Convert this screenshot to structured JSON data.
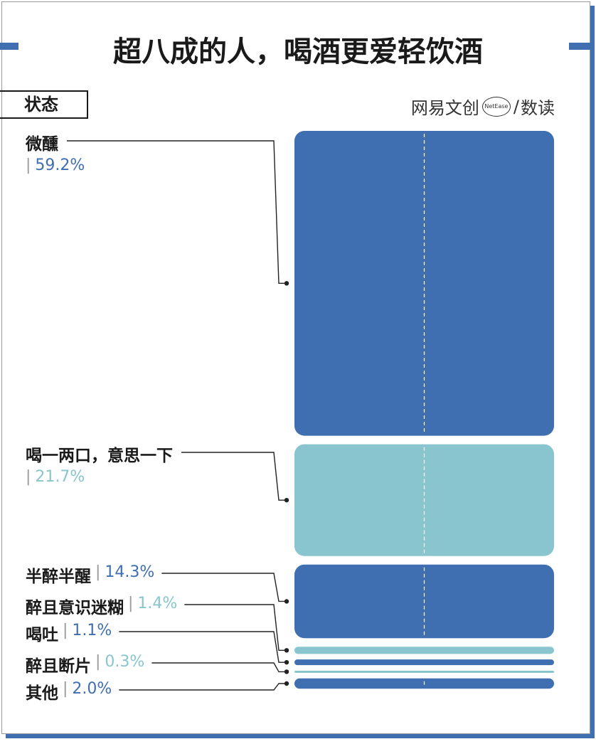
{
  "title": "超八成的人，喝酒更爱轻饮酒",
  "state_label": "状态",
  "logo": {
    "left": "网易文创",
    "ring": "NetEase",
    "sep": "/",
    "right": "数读"
  },
  "colors": {
    "dark": "#3f6fb0",
    "light": "#88c5ce"
  },
  "chart_data": {
    "type": "bar",
    "categories": [
      "微醺",
      "喝一两口，意思一下",
      "半醉半醒",
      "醉且意识迷糊",
      "喝吐",
      "醉且断片",
      "其他"
    ],
    "values": [
      59.2,
      21.7,
      14.3,
      1.4,
      1.1,
      0.3,
      2.0
    ],
    "value_labels": [
      "59.2%",
      "21.7%",
      "14.3%",
      "1.4%",
      "1.1%",
      "0.3%",
      "2.0%"
    ],
    "bar_colors": [
      "#3f6fb0",
      "#88c5ce",
      "#3f6fb0",
      "#88c5ce",
      "#3f6fb0",
      "#88c5ce",
      "#3f6fb0"
    ],
    "title": "超八成的人，喝酒更爱轻饮酒",
    "xlabel": "",
    "ylabel": "状态",
    "unit": "%"
  }
}
